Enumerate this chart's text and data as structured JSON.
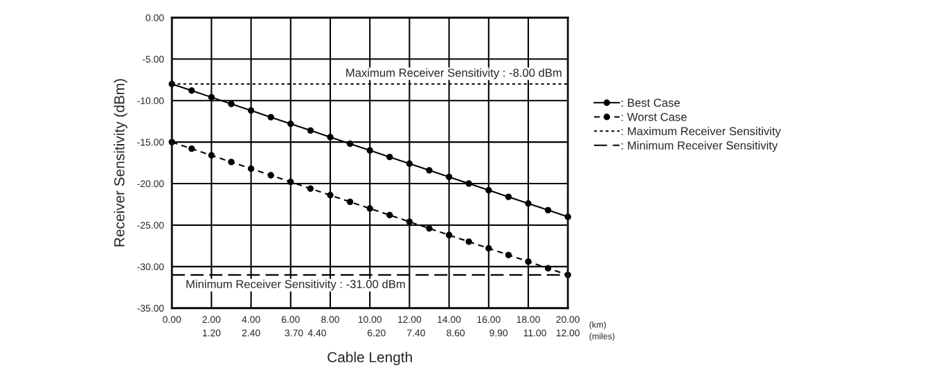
{
  "chart_data": {
    "type": "line",
    "xlabel": "Cable Length",
    "ylabel": "Receiver Sensitivity (dBm)",
    "xlim": [
      0,
      20
    ],
    "ylim": [
      -35,
      0
    ],
    "xticks": [
      {
        "value": 0,
        "label": "0.00"
      },
      {
        "value": 2,
        "label": "2.00"
      },
      {
        "value": 4,
        "label": "4.00"
      },
      {
        "value": 6,
        "label": "6.00"
      },
      {
        "value": 8,
        "label": "8.00"
      },
      {
        "value": 10,
        "label": "10.00"
      },
      {
        "value": 12,
        "label": "12.00"
      },
      {
        "value": 14,
        "label": "14.00"
      },
      {
        "value": 16,
        "label": "16.00"
      },
      {
        "value": 18,
        "label": "18.00"
      },
      {
        "value": 20,
        "label": "20.00"
      }
    ],
    "x2lim": [
      0,
      12
    ],
    "x2ticks": [
      {
        "value": 1.2,
        "label": "1.20"
      },
      {
        "value": 2.4,
        "label": "2.40"
      },
      {
        "value": 3.7,
        "label": "3.70"
      },
      {
        "value": 4.4,
        "label": "4.40"
      },
      {
        "value": 6.2,
        "label": "6.20"
      },
      {
        "value": 7.4,
        "label": "7.40"
      },
      {
        "value": 8.6,
        "label": "8.60"
      },
      {
        "value": 9.9,
        "label": "9.90"
      },
      {
        "value": 11,
        "label": "11.00"
      },
      {
        "value": 12,
        "label": "12.00"
      }
    ],
    "yticks": [
      {
        "value": 0,
        "label": "0.00"
      },
      {
        "value": -5,
        "label": "-5.00"
      },
      {
        "value": -10,
        "label": "-10.00"
      },
      {
        "value": -15,
        "label": "-15.00"
      },
      {
        "value": -20,
        "label": "-20.00"
      },
      {
        "value": -25,
        "label": "-25.00"
      },
      {
        "value": -30,
        "label": "-30.00"
      },
      {
        "value": -35,
        "label": "-35.00"
      }
    ],
    "grid": true,
    "legend": "right",
    "series": [
      {
        "name": ": Best Case",
        "color": "#000000",
        "marker": "circle",
        "line_style": "solid",
        "x": [
          0,
          1,
          2,
          3,
          4,
          5,
          6,
          7,
          8,
          9,
          10,
          11,
          12,
          13,
          14,
          15,
          16,
          17,
          18,
          19,
          20
        ],
        "values": [
          -8,
          -8.8,
          -9.6,
          -10.4,
          -11.2,
          -12,
          -12.8,
          -13.6,
          -14.4,
          -15.2,
          -16,
          -16.8,
          -17.6,
          -18.4,
          -19.2,
          -20,
          -20.8,
          -21.6,
          -22.4,
          -23.2,
          -24
        ]
      },
      {
        "name": ": Worst Case",
        "color": "#000000",
        "marker": "circle",
        "line_style": "dashed",
        "x": [
          0,
          1,
          2,
          3,
          4,
          5,
          6,
          7,
          8,
          9,
          10,
          11,
          12,
          13,
          14,
          15,
          16,
          17,
          18,
          19,
          20
        ],
        "values": [
          -15,
          -15.8,
          -16.6,
          -17.4,
          -18.2,
          -19,
          -19.8,
          -20.6,
          -21.4,
          -22.2,
          -23,
          -23.8,
          -24.6,
          -25.4,
          -26.2,
          -27,
          -27.8,
          -28.6,
          -29.4,
          -30.2,
          -31
        ]
      },
      {
        "name": ": Maximum Receiver Sensitivity",
        "color": "#000000",
        "marker": "none",
        "line_style": "dotted",
        "x": [
          0,
          20
        ],
        "values": [
          -8,
          -8
        ]
      },
      {
        "name": ": Minimum Receiver Sensitivity",
        "color": "#000000",
        "marker": "none",
        "line_style": "longdash",
        "x": [
          0,
          20
        ],
        "values": [
          -31,
          -31
        ]
      }
    ],
    "annotations": [
      {
        "text": "Maximum Receiver Sensitivity : -8.00 dBm",
        "x": 20,
        "y": -8
      },
      {
        "text": "Minimum Receiver Sensitivity : -31.00 dBm",
        "x": 0.5,
        "y": -31
      },
      "(km)",
      "(miles)"
    ]
  }
}
